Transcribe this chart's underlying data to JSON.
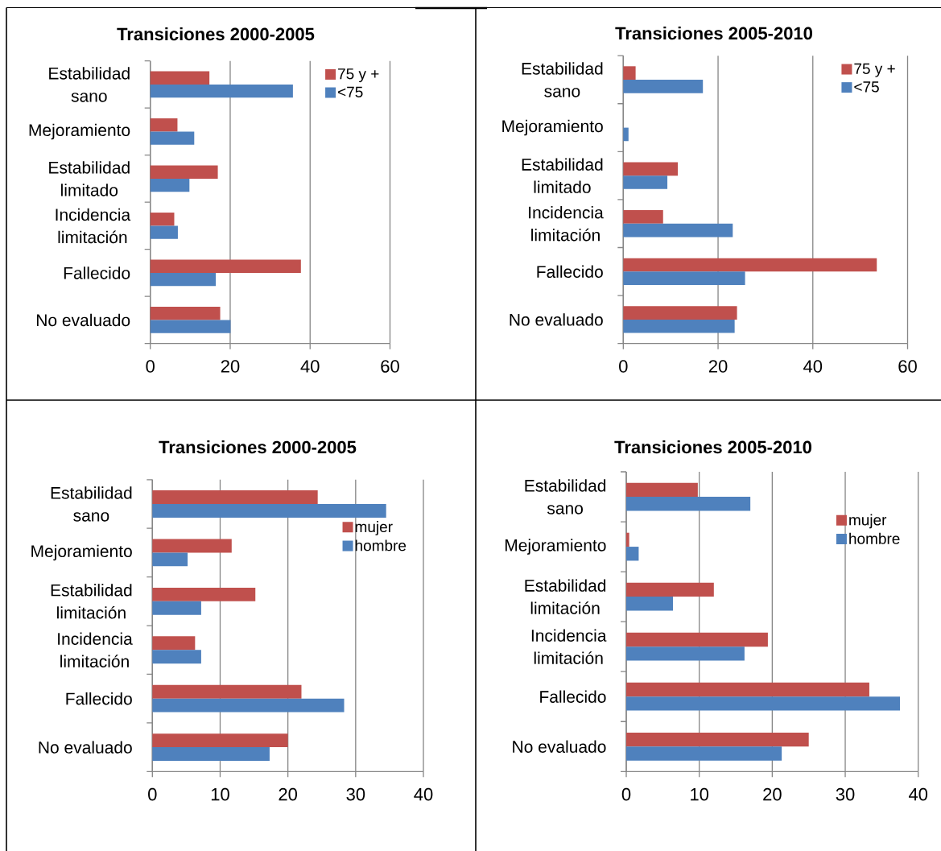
{
  "chart_data": [
    {
      "type": "bar",
      "orientation": "horizontal",
      "title": "Transiciones 2000-2005",
      "categories": [
        "Estabilidad sano",
        "Mejoramiento",
        "Estabilidad limitado",
        "Incidencia limitación",
        "Fallecido",
        "No evaluado"
      ],
      "series": [
        {
          "name": "75 y +",
          "color": "#c0504d",
          "values": [
            14.8,
            6.8,
            16.9,
            6.0,
            37.7,
            17.5
          ]
        },
        {
          "name": "<75",
          "color": "#4f81bd",
          "values": [
            35.7,
            11.0,
            9.8,
            6.9,
            16.4,
            20.1
          ]
        }
      ],
      "xlim": [
        0,
        60
      ],
      "xticks": [
        0,
        20,
        40,
        60
      ],
      "grid": "x",
      "legend": "top right"
    },
    {
      "type": "bar",
      "orientation": "horizontal",
      "title": "Transiciones 2005-2010",
      "categories": [
        "Estabilidad sano",
        "Mejoramiento",
        "Estabilidad limitado",
        "Incidencia limitación",
        "Fallecido",
        "No evaluado"
      ],
      "series": [
        {
          "name": "75 y +",
          "color": "#c0504d",
          "values": [
            2.6,
            null,
            11.5,
            8.4,
            53.5,
            24.0
          ]
        },
        {
          "name": "<75",
          "color": "#4f81bd",
          "values": [
            16.8,
            1.1,
            9.3,
            23.1,
            25.7,
            23.5
          ]
        }
      ],
      "xlim": [
        0,
        60
      ],
      "xticks": [
        0,
        20,
        40,
        60
      ],
      "grid": "x",
      "legend": "top right"
    },
    {
      "type": "bar",
      "orientation": "horizontal",
      "title": "Transiciones 2000-2005",
      "categories": [
        "Estabilidad sano",
        "Mejoramiento",
        "Estabilidad limitación",
        "Incidencia limitación",
        "Fallecido",
        "No evaluado"
      ],
      "series": [
        {
          "name": "mujer",
          "color": "#c0504d",
          "values": [
            24.4,
            11.7,
            15.2,
            6.3,
            22.0,
            20.0
          ]
        },
        {
          "name": "hombre",
          "color": "#4f81bd",
          "values": [
            34.5,
            5.2,
            7.2,
            7.2,
            28.3,
            17.3
          ]
        }
      ],
      "xlim": [
        0,
        40
      ],
      "xticks": [
        0,
        10,
        20,
        30,
        40
      ],
      "grid": "x",
      "legend": "right"
    },
    {
      "type": "bar",
      "orientation": "horizontal",
      "title": "Transiciones 2005-2010",
      "categories": [
        "Estabilidad sano",
        "Mejoramiento",
        "Estabilidad limitación",
        "Incidencia limitación",
        "Fallecido",
        "No evaluado"
      ],
      "series": [
        {
          "name": "mujer",
          "color": "#c0504d",
          "values": [
            9.8,
            0.4,
            12.0,
            19.4,
            33.3,
            25.0
          ]
        },
        {
          "name": "hombre",
          "color": "#4f81bd",
          "values": [
            17.0,
            1.7,
            6.4,
            16.2,
            37.5,
            21.3
          ]
        }
      ],
      "xlim": [
        0,
        40
      ],
      "xticks": [
        0,
        10,
        20,
        30,
        40
      ],
      "grid": "x",
      "legend": "right"
    }
  ]
}
